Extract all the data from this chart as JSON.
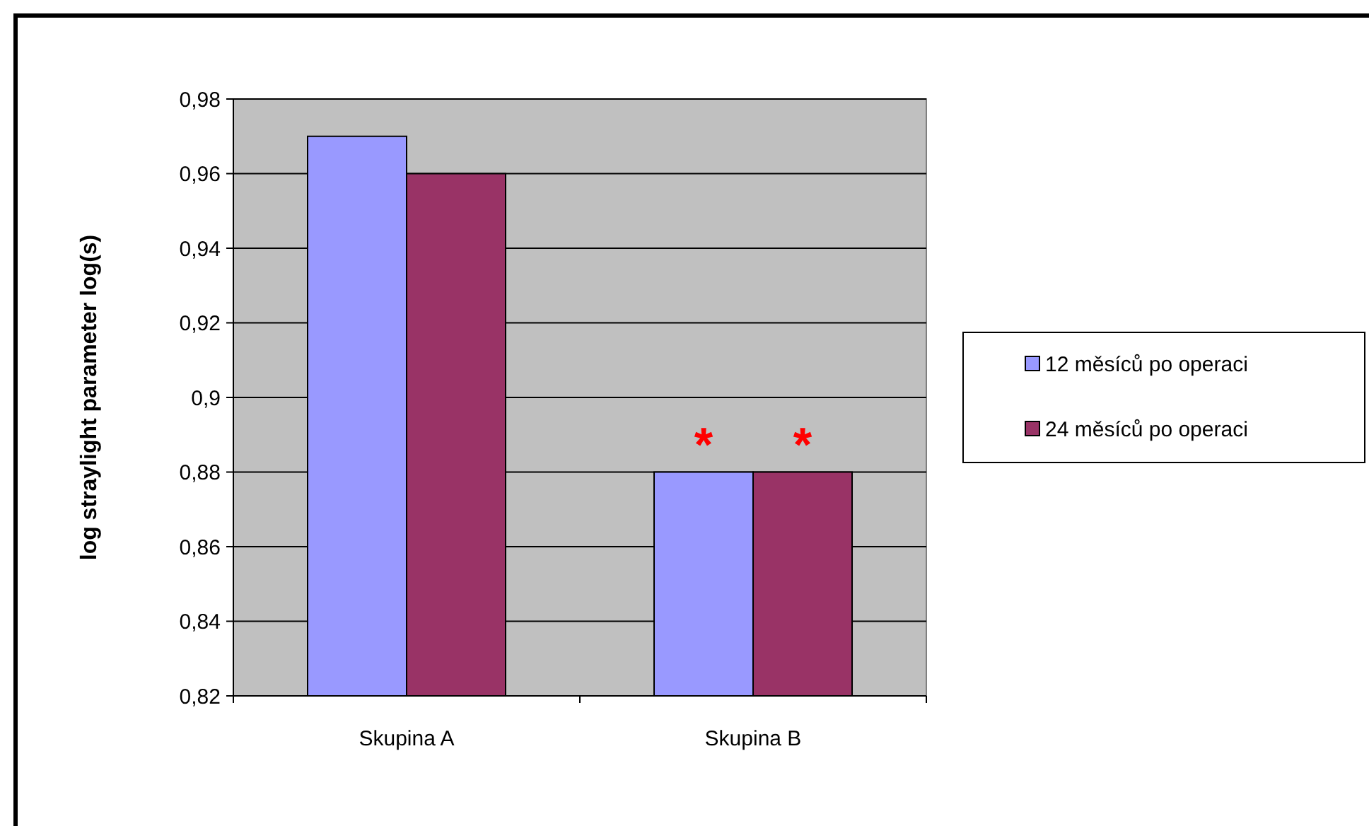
{
  "chart_data": {
    "type": "bar",
    "ylabel": "log straylight parameter log(s)",
    "categories": [
      "Skupina A",
      "Skupina B"
    ],
    "series": [
      {
        "name": "12 měsíců po operaci",
        "color": "#9999ff",
        "values": [
          0.97,
          0.88
        ]
      },
      {
        "name": "24 měsíců po operaci",
        "color": "#993366",
        "values": [
          0.96,
          0.88
        ]
      }
    ],
    "ylim": [
      0.82,
      0.98
    ],
    "yticks": [
      {
        "value": 0.82,
        "label": "0,82"
      },
      {
        "value": 0.84,
        "label": "0,84"
      },
      {
        "value": 0.86,
        "label": "0,86"
      },
      {
        "value": 0.88,
        "label": "0,88"
      },
      {
        "value": 0.9,
        "label": "0,9"
      },
      {
        "value": 0.92,
        "label": "0,92"
      },
      {
        "value": 0.94,
        "label": "0,94"
      },
      {
        "value": 0.96,
        "label": "0,96"
      },
      {
        "value": 0.98,
        "label": "0,98"
      }
    ],
    "grid": "y",
    "legend": "right",
    "annotations": [
      {
        "text": "*",
        "x": "Skupina B",
        "y": 0.88
      },
      {
        "text": "*",
        "x": "Skupina B",
        "y": 0.88
      }
    ]
  }
}
